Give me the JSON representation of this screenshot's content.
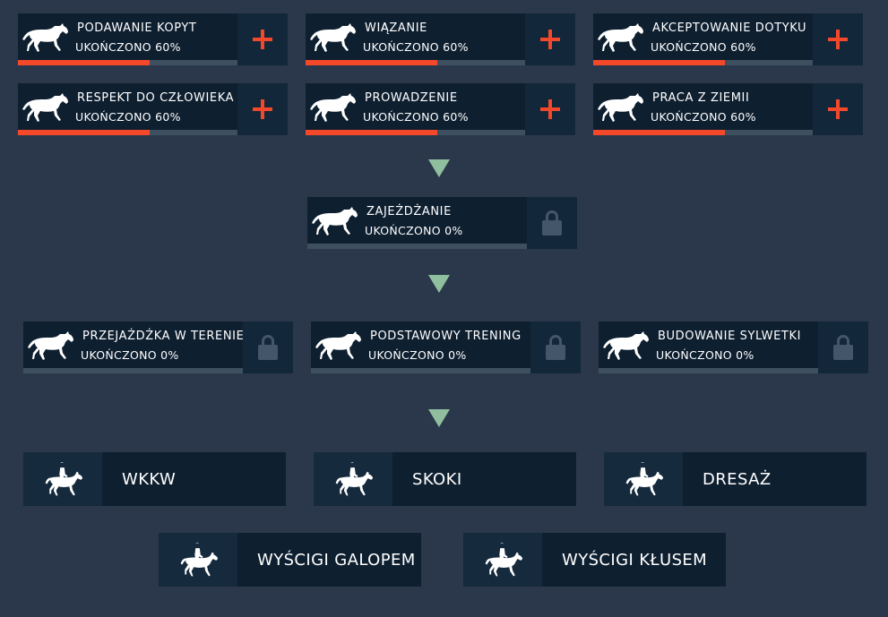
{
  "colors": {
    "background": "#2b384b",
    "card": "#0e1f30",
    "progress": "#f4482b",
    "track": "#3e4f60",
    "arrow": "#8fbf9e"
  },
  "skills_row1": [
    {
      "title": "PODAWANIE KOPYT",
      "status": "UKOŃCZONO 60%",
      "progress": 0.6,
      "action_icon": "plus-icon"
    },
    {
      "title": "WIĄZANIE",
      "status": "UKOŃCZONO 60%",
      "progress": 0.6,
      "action_icon": "plus-icon"
    },
    {
      "title": "AKCEPTOWANIE DOTYKU",
      "status": "UKOŃCZONO 60%",
      "progress": 0.6,
      "action_icon": "plus-icon"
    }
  ],
  "skills_row2": [
    {
      "title": "RESPEKT DO CZŁOWIEKA",
      "status": "UKOŃCZONO 60%",
      "progress": 0.6,
      "action_icon": "plus-icon"
    },
    {
      "title": "PROWADZENIE",
      "status": "UKOŃCZONO 60%",
      "progress": 0.6,
      "action_icon": "plus-icon"
    },
    {
      "title": "PRACA Z ZIEMII",
      "status": "UKOŃCZONO 60%",
      "progress": 0.6,
      "action_icon": "plus-icon"
    }
  ],
  "skill_breaking": {
    "title": "ZAJEŻDŻANIE",
    "status": "UKOŃCZONO 0%",
    "progress": 0,
    "action_icon": "lock-icon"
  },
  "skills_row4": [
    {
      "title": "PRZEJAŻDŻKA W TERENIE",
      "status": "UKOŃCZONO 0%",
      "progress": 0,
      "action_icon": "lock-icon"
    },
    {
      "title": "PODSTAWOWY TRENING",
      "status": "UKOŃCZONO 0%",
      "progress": 0,
      "action_icon": "lock-icon"
    },
    {
      "title": "BUDOWANIE SYLWETKI",
      "status": "UKOŃCZONO 0%",
      "progress": 0,
      "action_icon": "lock-icon"
    }
  ],
  "disciplines": [
    {
      "label": "WKKW",
      "icon": "rider-icon"
    },
    {
      "label": "SKOKI",
      "icon": "rider-icon"
    },
    {
      "label": "DRESAŻ",
      "icon": "rider-icon"
    },
    {
      "label": "WYŚCIGI GALOPEM",
      "icon": "rider-icon"
    },
    {
      "label": "WYŚCIGI KŁUSEM",
      "icon": "rider-icon"
    }
  ]
}
